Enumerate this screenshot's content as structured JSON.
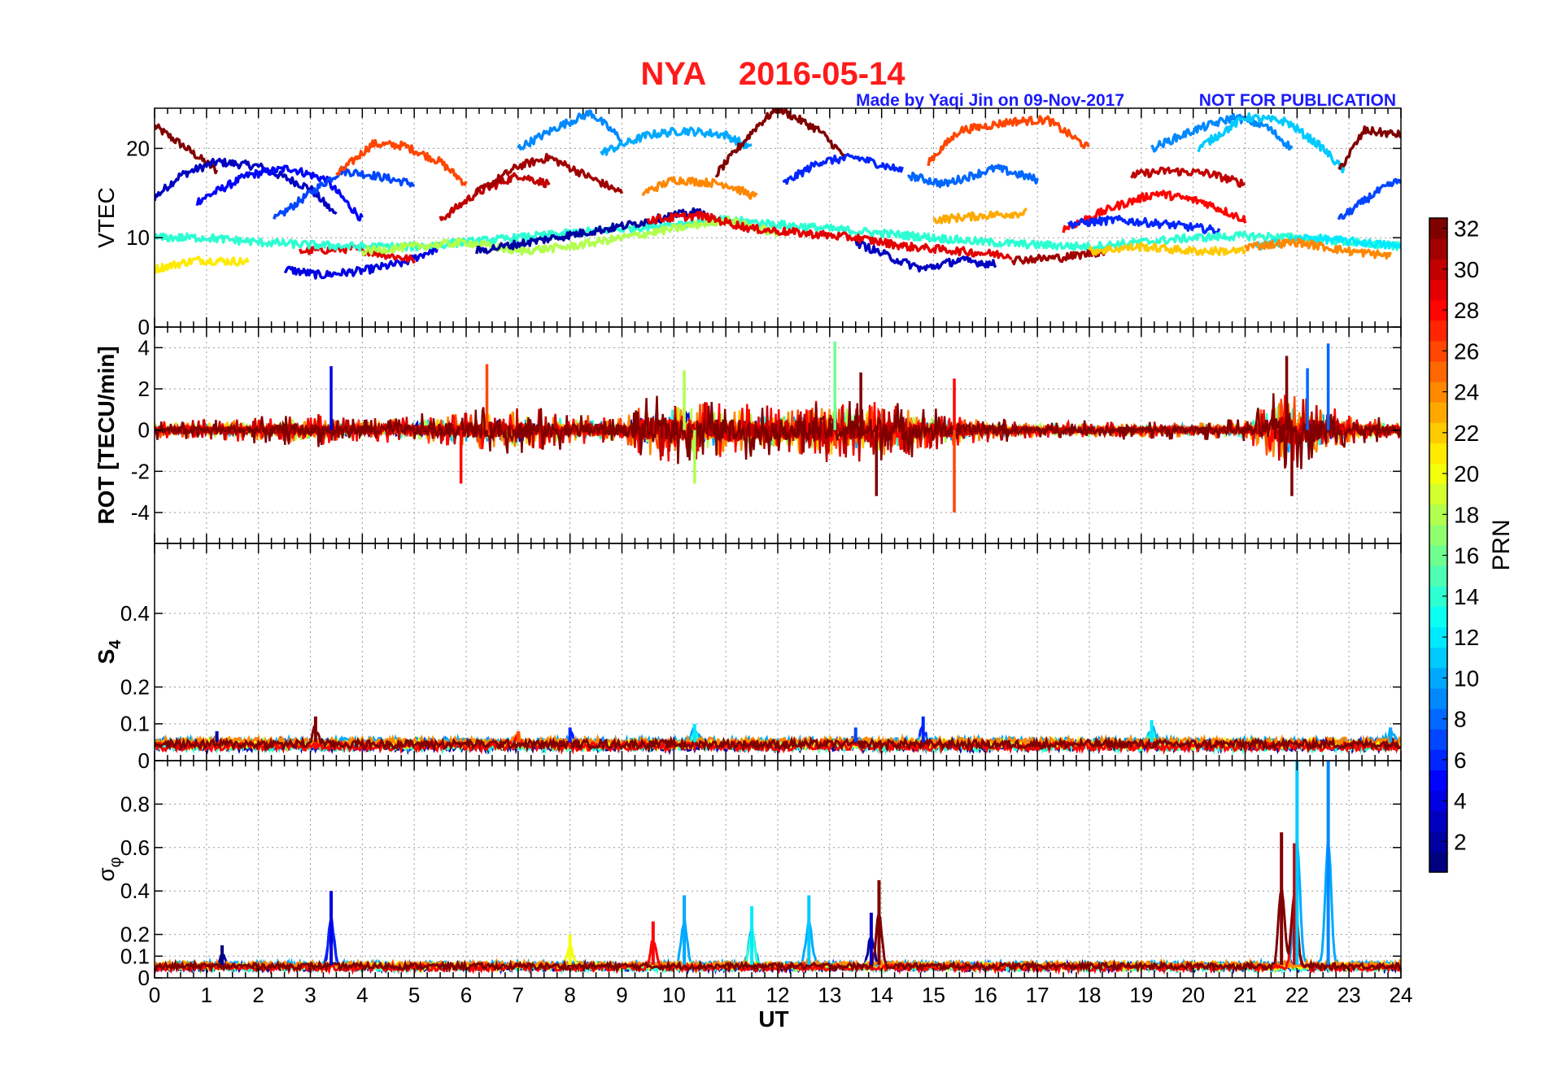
{
  "title": {
    "station": "NYA",
    "date": "2016-05-14",
    "credit": "Made by Yaqi Jin on 09-Nov-2017",
    "notice": "NOT FOR PUBLICATION"
  },
  "colors": {
    "title": "#ff1a1a",
    "credit": "#1a1aff",
    "grid": "#9a9a9a"
  },
  "chart_data": {
    "type": "line",
    "xlabel": "UT",
    "xlim": [
      0,
      24
    ],
    "xticks": [
      "0",
      "1",
      "2",
      "3",
      "4",
      "5",
      "6",
      "7",
      "8",
      "9",
      "10",
      "11",
      "12",
      "13",
      "14",
      "15",
      "16",
      "17",
      "18",
      "19",
      "20",
      "21",
      "22",
      "23",
      "24"
    ],
    "grid": true,
    "colormap": "jet",
    "colorbar": {
      "label": "PRN",
      "range": [
        1,
        32
      ],
      "ticks": [
        "2",
        "4",
        "6",
        "8",
        "10",
        "12",
        "14",
        "16",
        "18",
        "20",
        "22",
        "24",
        "26",
        "28",
        "30",
        "32"
      ]
    },
    "panels": [
      {
        "name": "vtec",
        "ylabel": "VTEC",
        "ylim": [
          0,
          24.5
        ],
        "yticks": [
          0,
          10,
          20
        ],
        "series": [
          {
            "prn": 32,
            "x": [
              0,
              0.5,
              1.2
            ],
            "y": [
              22.5,
              20.5,
              17.5
            ]
          },
          {
            "prn": 3,
            "x": [
              0,
              0.5,
              1.2,
              2,
              3,
              3.5
            ],
            "y": [
              14.5,
              17,
              18.5,
              18,
              15.5,
              12.5
            ]
          },
          {
            "prn": 5,
            "x": [
              0.8,
              1.8,
              2.6,
              3.3,
              4
            ],
            "y": [
              14,
              17,
              17.8,
              16.5,
              12
            ]
          },
          {
            "prn": 7,
            "x": [
              2.3,
              3,
              3.6,
              4.2,
              5
            ],
            "y": [
              12,
              15,
              17.5,
              17,
              16
            ]
          },
          {
            "prn": 26,
            "x": [
              3.5,
              4.2,
              4.8,
              5.5,
              6
            ],
            "y": [
              17,
              20.5,
              20.3,
              18.5,
              16
            ]
          },
          {
            "prn": 4,
            "x": [
              2.5,
              3.2,
              4,
              4.8,
              5.5
            ],
            "y": [
              6.5,
              5.8,
              6.3,
              7.2,
              9
            ]
          },
          {
            "prn": 29,
            "x": [
              2.8,
              3.8,
              5
            ],
            "y": [
              8.5,
              8.8,
              7.5
            ]
          },
          {
            "prn": 21,
            "x": [
              0,
              0.8,
              1.8
            ],
            "y": [
              6.5,
              7.5,
              7.3
            ]
          },
          {
            "prn": 30,
            "x": [
              5.5,
              6.2,
              7,
              7.6
            ],
            "y": [
              12,
              15,
              17,
              16
            ]
          },
          {
            "prn": 31,
            "x": [
              6.2,
              7,
              7.6,
              8.3,
              9
            ],
            "y": [
              15,
              18,
              19,
              17,
              15
            ]
          },
          {
            "prn": 9,
            "x": [
              7,
              7.8,
              8.4,
              9
            ],
            "y": [
              20,
              22.5,
              24,
              21
            ]
          },
          {
            "prn": 10,
            "x": [
              8.6,
              9.5,
              10.2,
              11,
              11.5
            ],
            "y": [
              19.5,
              21.5,
              22,
              21.5,
              20
            ]
          },
          {
            "prn": 24,
            "x": [
              9.4,
              10,
              11,
              11.6
            ],
            "y": [
              15,
              16.5,
              16,
              14.5
            ]
          },
          {
            "prn": 32,
            "x": [
              10.8,
              11.6,
              12,
              12.8,
              13.3
            ],
            "y": [
              17,
              22.5,
              24.5,
              22,
              19
            ]
          },
          {
            "prn": 6,
            "x": [
              12.1,
              12.8,
              13.5,
              14.4
            ],
            "y": [
              16,
              18.5,
              19,
              17.5
            ]
          },
          {
            "prn": 26,
            "x": [
              14.9,
              15.5,
              16.5,
              17.2,
              18
            ],
            "y": [
              18.5,
              22,
              23,
              23.2,
              20
            ]
          },
          {
            "prn": 8,
            "x": [
              14.5,
              15.2,
              16.2,
              17
            ],
            "y": [
              17,
              16,
              17.8,
              16.5
            ]
          },
          {
            "prn": 23,
            "x": [
              15,
              16,
              16.8
            ],
            "y": [
              12,
              12.5,
              12.8
            ]
          },
          {
            "prn": 30,
            "x": [
              18.8,
              19.5,
              20.3,
              21
            ],
            "y": [
              17,
              17.5,
              17.2,
              16
            ]
          },
          {
            "prn": 28,
            "x": [
              17.5,
              18.5,
              19.3,
              20.2,
              21
            ],
            "y": [
              11,
              13.5,
              15,
              14,
              12
            ]
          },
          {
            "prn": 6,
            "x": [
              17.6,
              18.5,
              19.5,
              20.5
            ],
            "y": [
              11.5,
              12,
              11.5,
              10.8
            ]
          },
          {
            "prn": 9,
            "x": [
              19.2,
              20,
              20.8,
              21.4,
              21.9
            ],
            "y": [
              20,
              22,
              23.5,
              22.5,
              20
            ]
          },
          {
            "prn": 11,
            "x": [
              20.1,
              21,
              21.8,
              22.5,
              22.9
            ],
            "y": [
              20,
              23.5,
              23,
              20,
              17.5
            ]
          },
          {
            "prn": 32,
            "x": [
              22.8,
              23.3,
              24
            ],
            "y": [
              17.5,
              22,
              21.5
            ]
          },
          {
            "prn": 7,
            "x": [
              22.8,
              23.5,
              24
            ],
            "y": [
              12,
              15,
              16.5
            ]
          },
          {
            "prn": 14,
            "x": [
              0,
              1,
              2,
              3,
              4,
              5,
              6,
              7,
              8,
              9,
              10,
              11,
              12,
              13,
              14,
              15,
              16,
              17,
              18,
              19,
              20,
              21,
              22,
              23,
              24
            ],
            "y": [
              10,
              10,
              9.5,
              9.2,
              9,
              9,
              9.5,
              10,
              10.5,
              11,
              11.5,
              12,
              11.5,
              11,
              10.5,
              10,
              9.5,
              9.2,
              9,
              9.5,
              10,
              10.2,
              10,
              9.5,
              9
            ]
          },
          {
            "prn": 18,
            "x": [
              4,
              5,
              6,
              7,
              8,
              9,
              10,
              11,
              12
            ],
            "y": [
              8.5,
              9,
              9.5,
              8.5,
              9,
              10,
              11,
              12,
              10.5
            ]
          },
          {
            "prn": 2,
            "x": [
              6.2,
              7.2,
              8.2,
              9.2,
              10,
              10.6
            ],
            "y": [
              8.5,
              9.5,
              10.5,
              11.5,
              12.5,
              13
            ]
          },
          {
            "prn": 3,
            "x": [
              13.5,
              14.3,
              14.8,
              15.5,
              16.2
            ],
            "y": [
              9.5,
              7.5,
              6.5,
              7.5,
              7
            ]
          },
          {
            "prn": 29,
            "x": [
              9.5,
              10.5,
              11.5,
              12.5,
              13.5,
              14.5,
              15.5,
              16.5
            ],
            "y": [
              12,
              12.5,
              11,
              10.5,
              10,
              9,
              8.5,
              8
            ]
          },
          {
            "prn": 31,
            "x": [
              16.5,
              17.5,
              18.3
            ],
            "y": [
              7.5,
              7.8,
              8.5
            ]
          },
          {
            "prn": 22,
            "x": [
              18,
              19,
              20,
              21
            ],
            "y": [
              8.5,
              9,
              8.5,
              8.5
            ]
          },
          {
            "prn": 12,
            "x": [
              21.2,
              22.2,
              23.2,
              24
            ],
            "y": [
              9,
              10,
              9.5,
              9
            ]
          },
          {
            "prn": 24,
            "x": [
              21,
              22,
              23,
              23.8
            ],
            "y": [
              9,
              9.5,
              8.5,
              8
            ]
          }
        ]
      },
      {
        "name": "rot",
        "ylabel": "ROT [TECU/min]",
        "ylim": [
          -5.5,
          5
        ],
        "yticks": [
          -4,
          -2,
          0,
          2,
          4
        ],
        "envelope": {
          "x": [
            0,
            1,
            2,
            3,
            4,
            5,
            6,
            7,
            8,
            9,
            9.5,
            10,
            11,
            12,
            13,
            14,
            15,
            16,
            17,
            18,
            19,
            20,
            21,
            21.8,
            22.3,
            23,
            24
          ],
          "amplitude": [
            0.5,
            0.6,
            0.7,
            0.9,
            0.7,
            0.8,
            1.2,
            1.3,
            1,
            0.8,
            1.8,
            1.9,
            1.6,
            1.4,
            1.8,
            1.7,
            1.2,
            0.7,
            0.5,
            0.5,
            0.5,
            0.5,
            0.6,
            2.5,
            1.8,
            0.9,
            0.5
          ]
        },
        "spikes": [
          {
            "x": 3.4,
            "y": 3.1,
            "prn": 4
          },
          {
            "x": 5.9,
            "y": -2.6,
            "prn": 28
          },
          {
            "x": 6.4,
            "y": 3.2,
            "prn": 26
          },
          {
            "x": 10.2,
            "y": 2.9,
            "prn": 18
          },
          {
            "x": 10.4,
            "y": -2.6,
            "prn": 18
          },
          {
            "x": 13.1,
            "y": 4.3,
            "prn": 16
          },
          {
            "x": 13.6,
            "y": 2.8,
            "prn": 32
          },
          {
            "x": 13.9,
            "y": -3.2,
            "prn": 32
          },
          {
            "x": 15.4,
            "y": -4,
            "prn": 26
          },
          {
            "x": 15.4,
            "y": 2.5,
            "prn": 28
          },
          {
            "x": 21.8,
            "y": 3.6,
            "prn": 32
          },
          {
            "x": 21.9,
            "y": -3.2,
            "prn": 32
          },
          {
            "x": 22.6,
            "y": 4.2,
            "prn": 8
          },
          {
            "x": 22.2,
            "y": 3,
            "prn": 8
          }
        ]
      },
      {
        "name": "s4",
        "ylabel": "S4",
        "ylim": [
          0,
          0.59
        ],
        "yticks": [
          "0",
          "0.1",
          "0.2",
          "0.4"
        ],
        "baseline": 0.05,
        "peaks": [
          {
            "x": 1.2,
            "y": 0.08,
            "prn": 2
          },
          {
            "x": 3.1,
            "y": 0.12,
            "prn": 32
          },
          {
            "x": 7,
            "y": 0.08,
            "prn": 26
          },
          {
            "x": 8,
            "y": 0.09,
            "prn": 6
          },
          {
            "x": 10.4,
            "y": 0.1,
            "prn": 12
          },
          {
            "x": 13.5,
            "y": 0.09,
            "prn": 7
          },
          {
            "x": 14.8,
            "y": 0.12,
            "prn": 6
          },
          {
            "x": 19.2,
            "y": 0.11,
            "prn": 12
          },
          {
            "x": 23.8,
            "y": 0.09,
            "prn": 10
          }
        ]
      },
      {
        "name": "sigma_phi",
        "ylabel": "σφ",
        "ylim": [
          0,
          1
        ],
        "yticks": [
          "0",
          "0.1",
          "0.2",
          "0.4",
          "0.6",
          "0.8"
        ],
        "baseline": 0.06,
        "peaks": [
          {
            "x": 1.3,
            "y": 0.15,
            "prn": 1
          },
          {
            "x": 3.4,
            "y": 0.4,
            "prn": 4
          },
          {
            "x": 8,
            "y": 0.2,
            "prn": 20
          },
          {
            "x": 9.6,
            "y": 0.26,
            "prn": 28
          },
          {
            "x": 10.2,
            "y": 0.38,
            "prn": 10
          },
          {
            "x": 11.5,
            "y": 0.33,
            "prn": 12
          },
          {
            "x": 12.6,
            "y": 0.38,
            "prn": 11
          },
          {
            "x": 13.8,
            "y": 0.3,
            "prn": 3
          },
          {
            "x": 13.95,
            "y": 0.45,
            "prn": 32
          },
          {
            "x": 21.7,
            "y": 0.67,
            "prn": 32
          },
          {
            "x": 21.95,
            "y": 0.62,
            "prn": 30
          },
          {
            "x": 22.0,
            "y": 1,
            "prn": 11
          },
          {
            "x": 22.6,
            "y": 1,
            "prn": 9
          }
        ]
      }
    ]
  }
}
